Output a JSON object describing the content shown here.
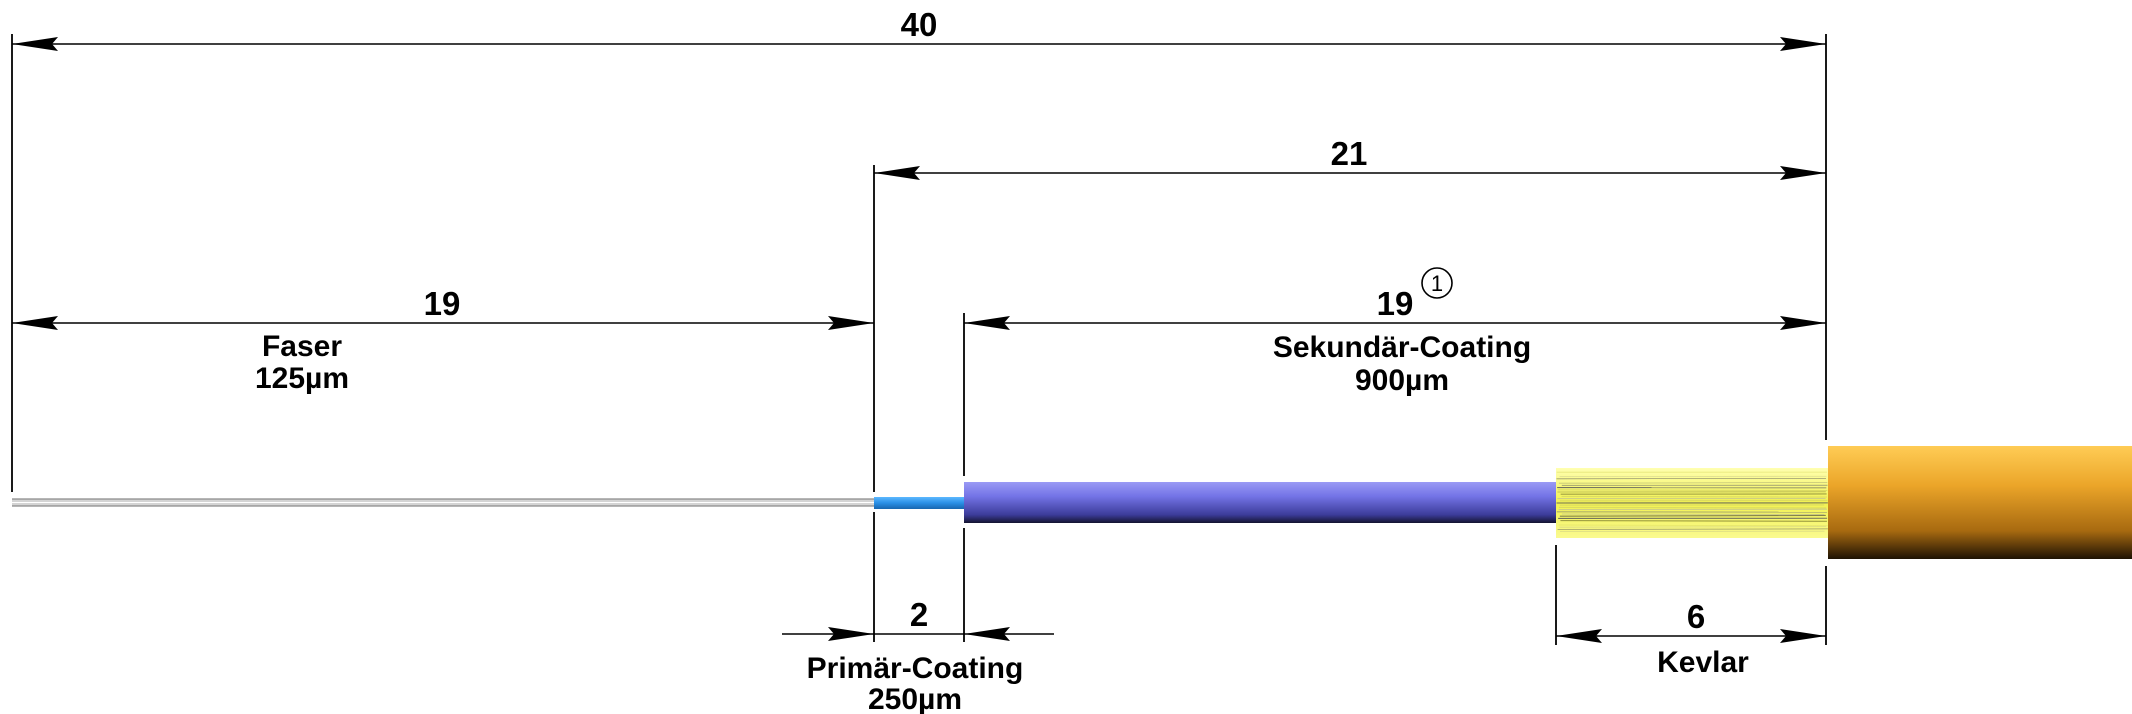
{
  "dimensions": {
    "total": "40",
    "upper_right": "21",
    "fiber": "19",
    "secondary": "19",
    "primary": "2",
    "kevlar": "6"
  },
  "labels": {
    "fiber_name": "Faser",
    "fiber_size": "125µm",
    "secondary_name": "Sekundär-Coating",
    "secondary_size": "900µm",
    "primary_name": "Primär-Coating",
    "primary_size": "250µm",
    "kevlar_name": "Kevlar"
  },
  "note_marker": "1",
  "colors": {
    "fiber": "#c8c8c8",
    "primary_coating": "#2a8fe6",
    "secondary_coating": "#6e6ee0",
    "kevlar": "#f2f250",
    "jacket": "#e8a020"
  }
}
